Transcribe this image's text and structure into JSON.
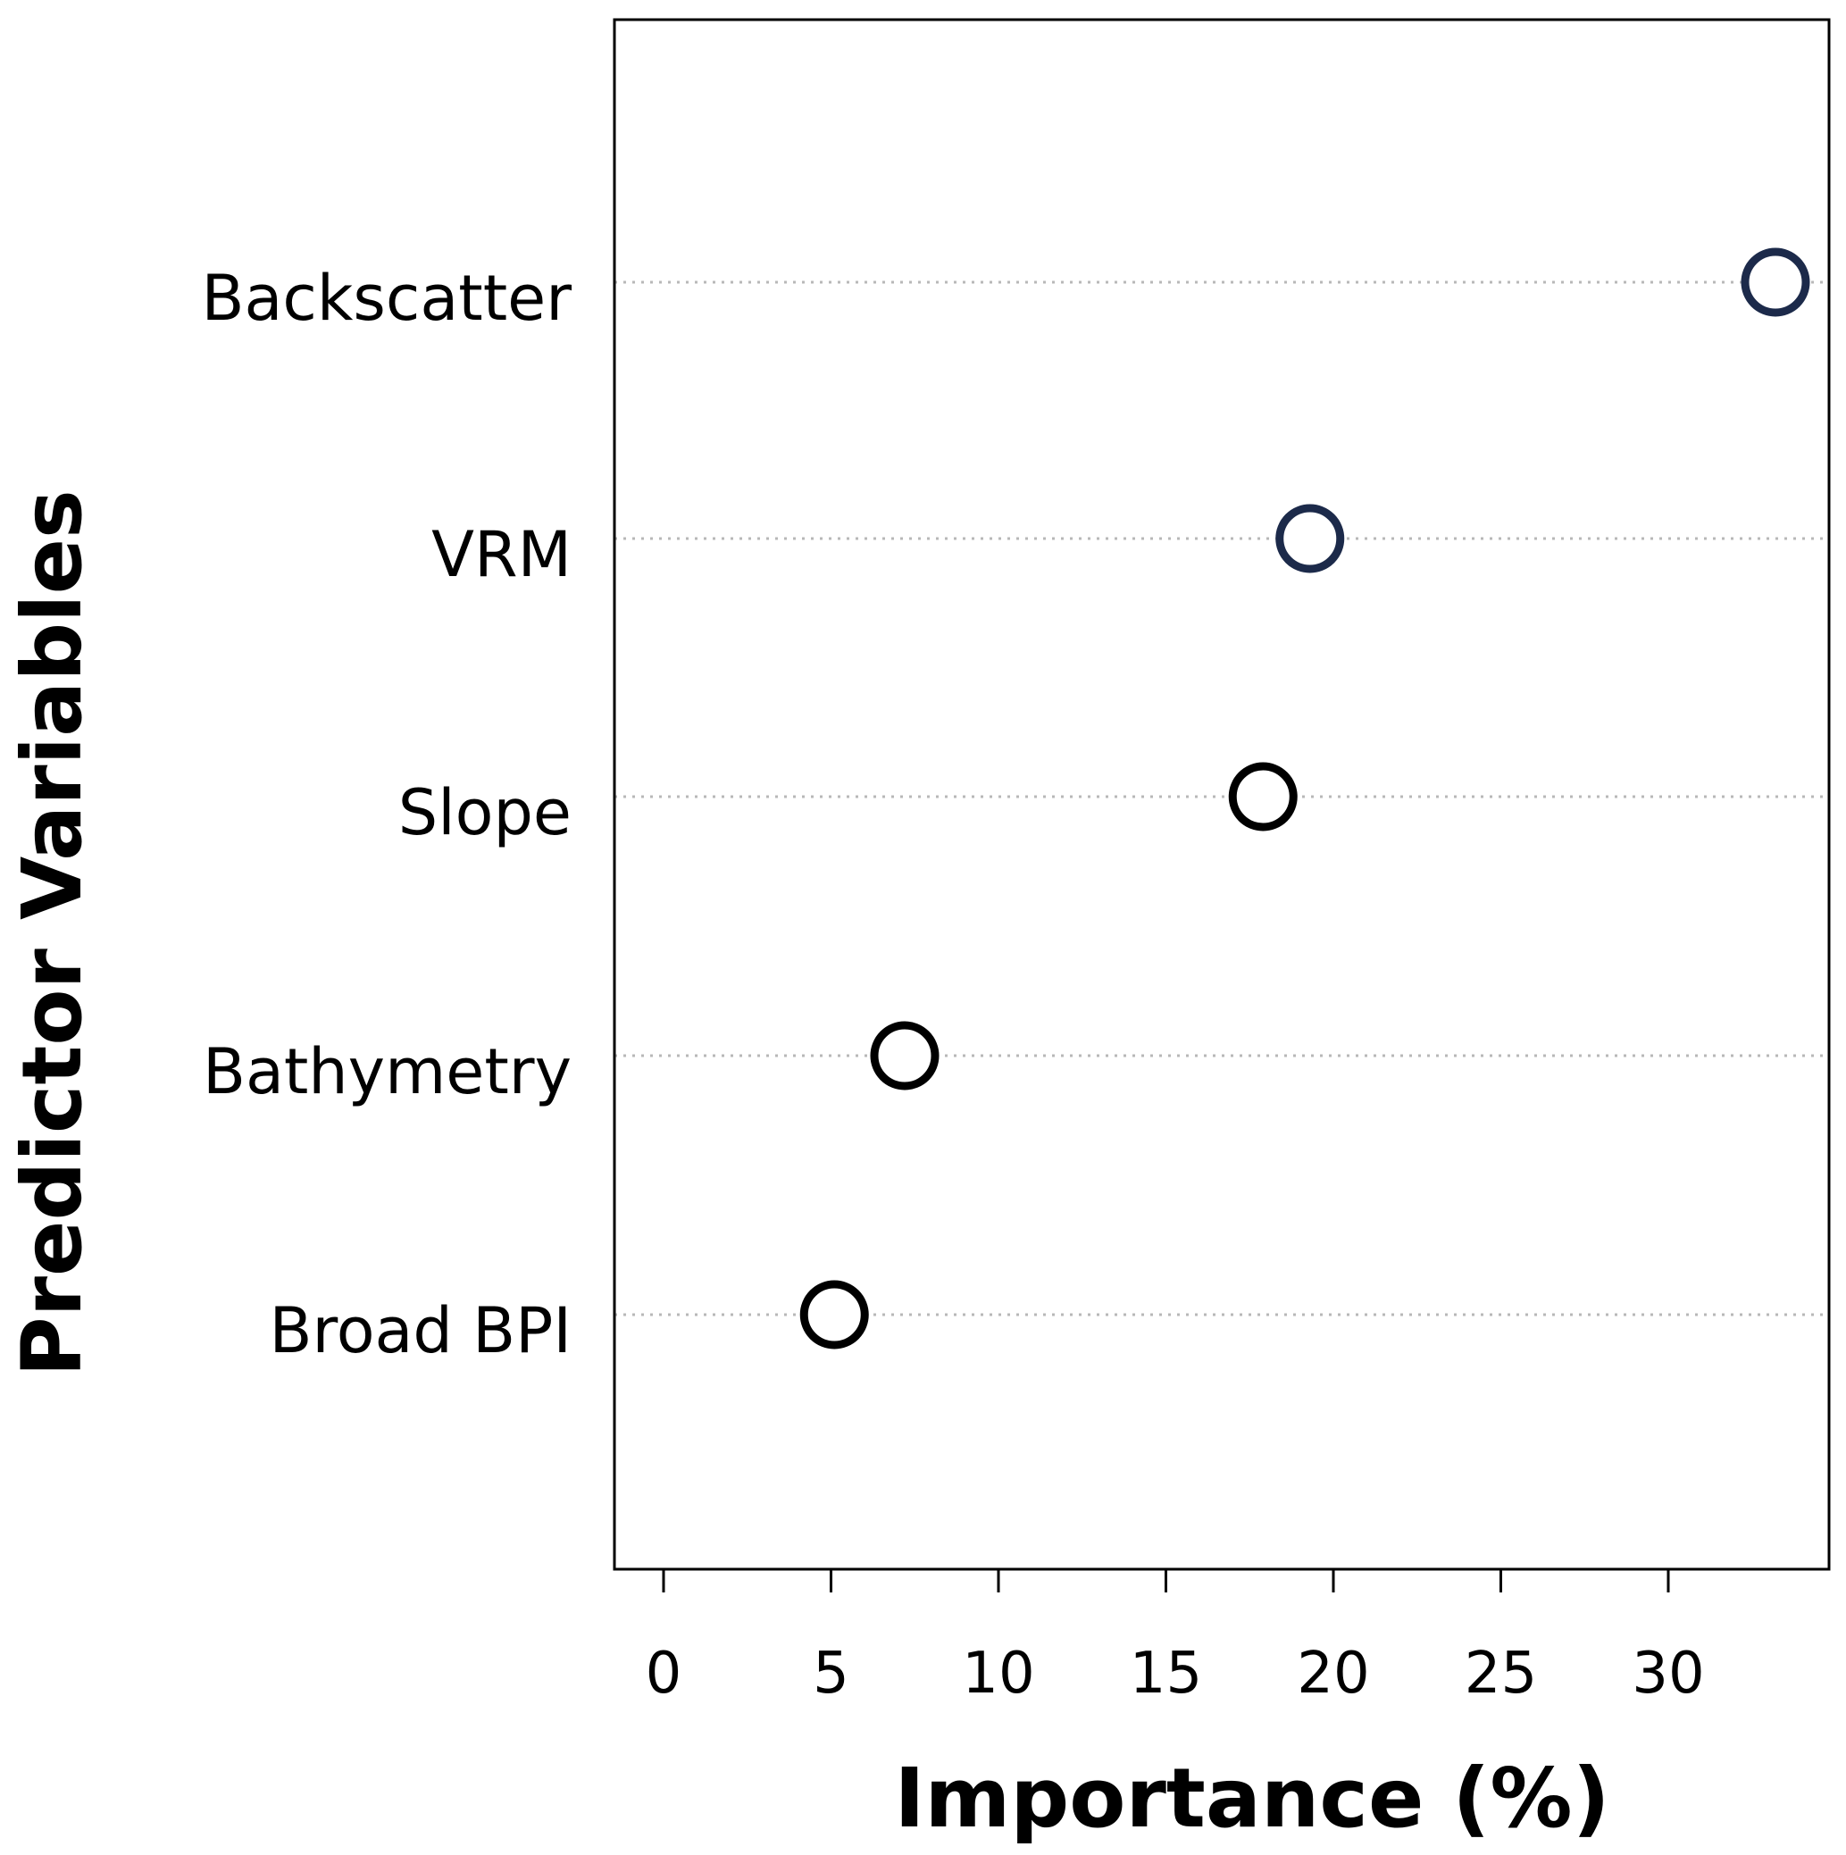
{
  "chart_data": {
    "type": "scatter",
    "title": "",
    "xlabel": "Importance (%)",
    "ylabel": "Predictor Variables",
    "xlim": [
      -1.4,
      34.8
    ],
    "xticks": [
      0,
      5,
      10,
      15,
      20,
      25,
      30
    ],
    "grid": "horizontal dotted",
    "series": [
      {
        "categories": [
          "Backscatter",
          "VRM",
          "Slope",
          "Bathymetry",
          "Broad BPI"
        ],
        "values": [
          33.2,
          19.3,
          17.9,
          7.2,
          5.1
        ]
      }
    ],
    "marker": "open-circle",
    "colors": {
      "Backscatter": "#1c2a4a",
      "VRM": "#1c2a4a",
      "Slope": "#000000",
      "Bathymetry": "#000000",
      "Broad BPI": "#000000"
    }
  }
}
